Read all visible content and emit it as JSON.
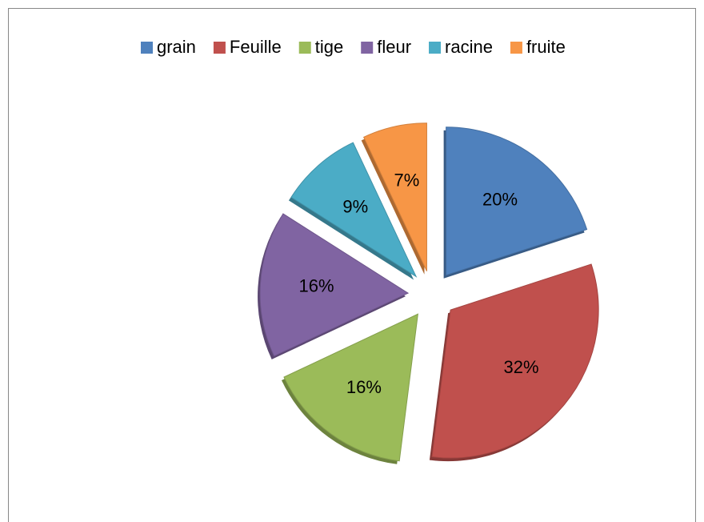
{
  "chart_data": {
    "type": "pie",
    "categories": [
      "grain",
      "Feuille",
      "tige",
      "fleur",
      "racine",
      "fruite"
    ],
    "values": [
      20,
      32,
      16,
      16,
      9,
      7
    ],
    "value_labels": [
      "20%",
      "32%",
      "16%",
      "16%",
      "9%",
      "7%"
    ],
    "colors": [
      "#4f81bd",
      "#c0504d",
      "#9bbb59",
      "#8064a2",
      "#4bacc6",
      "#f79646"
    ],
    "legend": "top"
  }
}
